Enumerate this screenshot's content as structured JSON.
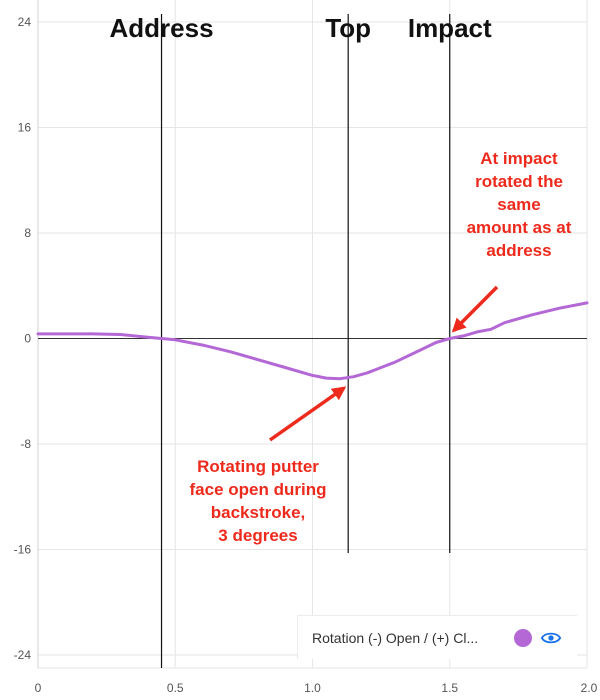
{
  "chart_data": {
    "type": "line",
    "xlim": [
      0,
      2.0
    ],
    "ylim": [
      -24,
      24
    ],
    "x_ticks": [
      "0",
      "0.5",
      "1.0",
      "1.5",
      "2.0"
    ],
    "y_ticks": [
      "24",
      "16",
      "8",
      "0",
      "-8",
      "-16",
      "-24"
    ],
    "grid": true,
    "series": [
      {
        "name": "Rotation (-) Open / (+) Cl...",
        "color": "#b368d6",
        "x": [
          0,
          0.1,
          0.2,
          0.3,
          0.4,
          0.45,
          0.5,
          0.6,
          0.7,
          0.8,
          0.9,
          1.0,
          1.05,
          1.1,
          1.15,
          1.2,
          1.3,
          1.4,
          1.45,
          1.5,
          1.55,
          1.6,
          1.65,
          1.7,
          1.8,
          1.9,
          2.0
        ],
        "y": [
          0.35,
          0.35,
          0.35,
          0.3,
          0.1,
          0.0,
          -0.1,
          -0.5,
          -1.0,
          -1.6,
          -2.2,
          -2.8,
          -3.0,
          -3.05,
          -2.9,
          -2.6,
          -1.8,
          -0.8,
          -0.3,
          0.0,
          0.2,
          0.5,
          0.7,
          1.2,
          1.8,
          2.3,
          2.7
        ]
      }
    ],
    "phase_markers": [
      {
        "label": "Address",
        "x": 0.45
      },
      {
        "label": "Top",
        "x": 1.13
      },
      {
        "label": "Impact",
        "x": 1.5
      }
    ],
    "annotations": [
      {
        "lines": [
          "At impact",
          "rotated the",
          "same",
          "amount as at",
          "address"
        ],
        "target": [
          1.5,
          0
        ]
      },
      {
        "lines": [
          "Rotating putter",
          "face open during",
          "backstroke,",
          "3 degrees"
        ],
        "target": [
          1.1,
          -3.3
        ]
      }
    ]
  },
  "legend": {
    "label": "Rotation (-) Open / (+) Cl...",
    "swatch_color": "#b368d6",
    "eye_icon": "eye-icon",
    "eye_color": "#1a73e8"
  },
  "colors": {
    "grid": "#e6e6e6",
    "axis": "#333333",
    "annotation": "#ee2a1c"
  }
}
